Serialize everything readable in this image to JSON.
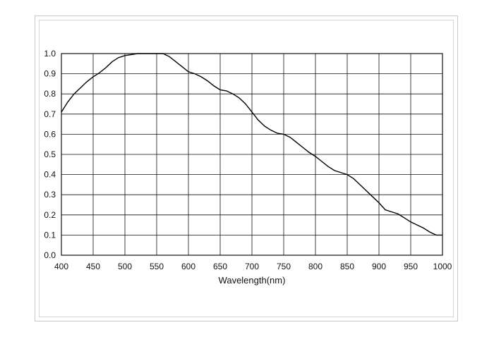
{
  "chart_data": {
    "type": "line",
    "title": "",
    "xlabel": "Wavelength(nm)",
    "ylabel": "",
    "xlim": [
      400,
      1000
    ],
    "ylim": [
      0,
      1.0
    ],
    "grid": true,
    "legend": "none",
    "x_ticks": [
      "400",
      "450",
      "500",
      "550",
      "600",
      "650",
      "700",
      "750",
      "800",
      "850",
      "900",
      "950",
      "1000"
    ],
    "y_ticks": [
      "0.0",
      "0.1",
      "0.2",
      "0.3",
      "0.4",
      "0.5",
      "0.6",
      "0.7",
      "0.8",
      "0.9",
      "1.0"
    ],
    "series": [
      {
        "color": "#000000",
        "x": [
          400,
          410,
          420,
          430,
          440,
          450,
          460,
          470,
          480,
          490,
          500,
          510,
          520,
          530,
          540,
          550,
          560,
          570,
          580,
          590,
          600,
          610,
          620,
          630,
          640,
          650,
          660,
          670,
          680,
          690,
          700,
          710,
          720,
          730,
          740,
          750,
          760,
          770,
          780,
          790,
          800,
          810,
          820,
          830,
          840,
          850,
          860,
          870,
          880,
          890,
          900,
          910,
          920,
          930,
          940,
          950,
          960,
          970,
          980,
          990,
          1000
        ],
        "y": [
          0.71,
          0.76,
          0.8,
          0.83,
          0.86,
          0.885,
          0.905,
          0.93,
          0.96,
          0.98,
          0.99,
          0.995,
          1.0,
          1.0,
          1.0,
          1.0,
          1.0,
          0.985,
          0.96,
          0.935,
          0.91,
          0.9,
          0.885,
          0.865,
          0.84,
          0.82,
          0.815,
          0.8,
          0.78,
          0.75,
          0.71,
          0.67,
          0.64,
          0.62,
          0.605,
          0.6,
          0.585,
          0.56,
          0.535,
          0.51,
          0.49,
          0.465,
          0.44,
          0.42,
          0.41,
          0.4,
          0.38,
          0.35,
          0.32,
          0.29,
          0.26,
          0.225,
          0.215,
          0.205,
          0.185,
          0.165,
          0.15,
          0.135,
          0.115,
          0.1,
          0.1
        ]
      }
    ]
  }
}
